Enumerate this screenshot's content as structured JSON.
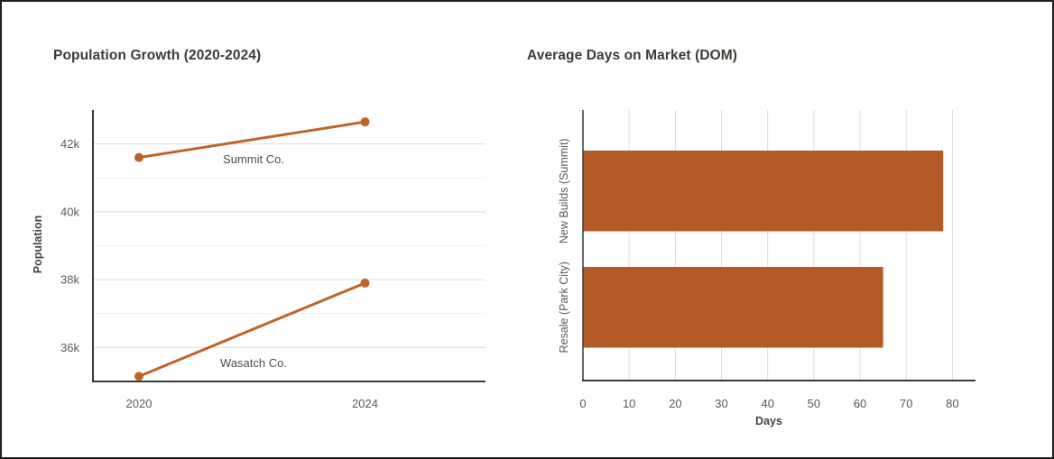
{
  "frame": {
    "background": "#ffffff",
    "border_color": "#1f1f1f"
  },
  "colors": {
    "title": "#3c3c36",
    "tick_label": "#585856",
    "axis_label": "#454540",
    "series_label": "#4d4d4b",
    "axis_line": "#3a3a38",
    "grid_major": "#dcdcdc",
    "grid_minor": "#f0f0f0",
    "line_accent": "#c06329",
    "bar_accent": "#b45a27"
  },
  "chart_data": [
    {
      "type": "line",
      "title": "Population Growth (2020-2024)",
      "x_categories": [
        "2020",
        "2024"
      ],
      "series": [
        {
          "name": "Summit Co.",
          "values": [
            41600,
            42650
          ]
        },
        {
          "name": "Wasatch Co.",
          "values": [
            35150,
            37900
          ]
        }
      ],
      "xlabel": "",
      "ylabel": "Population",
      "ylim": [
        35000,
        43000
      ],
      "ytick_values": [
        36000,
        38000,
        40000,
        42000
      ],
      "ytick_labels": [
        "36k",
        "38k",
        "40k",
        "42k"
      ],
      "yminor_values": [
        37000,
        39000,
        41000
      ],
      "grid": "horizontal, major plus lighter minor lines",
      "legend": "inline labels near lines",
      "marker": "filled circle"
    },
    {
      "type": "bar",
      "orientation": "horizontal",
      "title": "Average Days on Market (DOM)",
      "categories": [
        "New Builds (Summit)",
        "Resale (Park City)"
      ],
      "values": [
        78,
        65
      ],
      "xlabel": "Days",
      "ylabel": "",
      "xlim": [
        0,
        85
      ],
      "xtick_values": [
        0,
        10,
        20,
        30,
        40,
        50,
        60,
        70,
        80
      ],
      "xtick_labels": [
        "0",
        "10",
        "20",
        "30",
        "40",
        "50",
        "60",
        "70",
        "80"
      ],
      "grid": "vertical at each x tick",
      "legend": "none"
    }
  ]
}
